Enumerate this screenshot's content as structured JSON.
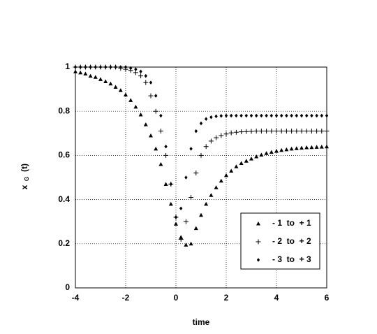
{
  "chart_data": {
    "type": "scatter",
    "xlabel": "time",
    "ylabel": "x",
    "ylabel_subscript": "G",
    "ylabel_suffix": "(t)",
    "x": [
      -4,
      -3.8,
      -3.6,
      -3.4,
      -3.2,
      -3,
      -2.8,
      -2.6,
      -2.4,
      -2.2,
      -2,
      -1.8,
      -1.6,
      -1.4,
      -1.2,
      -1,
      -0.8,
      -0.6,
      -0.4,
      -0.2,
      0,
      0.2,
      0.4,
      0.6,
      0.8,
      1,
      1.2,
      1.4,
      1.6,
      1.8,
      2,
      2.2,
      2.4,
      2.6,
      2.8,
      3,
      3.2,
      3.4,
      3.6,
      3.8,
      4,
      4.2,
      4.4,
      4.6,
      4.8,
      5,
      5.2,
      5.4,
      5.6,
      5.8,
      6
    ],
    "series": [
      {
        "name": "- 1  to  + 1",
        "marker": "triangle",
        "color": "#000000",
        "values": [
          0.98,
          0.975,
          0.97,
          0.96,
          0.955,
          0.945,
          0.935,
          0.925,
          0.91,
          0.895,
          0.875,
          0.85,
          0.82,
          0.785,
          0.74,
          0.69,
          0.63,
          0.56,
          0.47,
          0.38,
          0.29,
          0.23,
          0.195,
          0.2,
          0.27,
          0.33,
          0.38,
          0.42,
          0.455,
          0.485,
          0.51,
          0.53,
          0.55,
          0.565,
          0.575,
          0.585,
          0.595,
          0.603,
          0.61,
          0.615,
          0.62,
          0.624,
          0.627,
          0.63,
          0.632,
          0.634,
          0.636,
          0.637,
          0.638,
          0.639,
          0.64
        ]
      },
      {
        "name": "- 2  to  + 2",
        "marker": "plus",
        "color": "#000000",
        "values": [
          1,
          1,
          1,
          1,
          1,
          1,
          1,
          1,
          1,
          0.995,
          0.99,
          0.985,
          0.975,
          0.96,
          0.93,
          0.87,
          0.8,
          0.71,
          0.6,
          0.47,
          0.32,
          0.22,
          0.3,
          0.41,
          0.52,
          0.6,
          0.64,
          0.665,
          0.68,
          0.69,
          0.697,
          0.702,
          0.705,
          0.707,
          0.708,
          0.709,
          0.71,
          0.71,
          0.71,
          0.71,
          0.71,
          0.71,
          0.71,
          0.71,
          0.71,
          0.71,
          0.71,
          0.71,
          0.71,
          0.71,
          0.71
        ]
      },
      {
        "name": "- 3  to  + 3",
        "marker": "diamond",
        "color": "#000000",
        "values": [
          1,
          1,
          1,
          1,
          1,
          1,
          1,
          1,
          1,
          1,
          1,
          0.995,
          0.99,
          0.98,
          0.96,
          0.93,
          0.87,
          0.78,
          0.64,
          0.47,
          0.32,
          0.36,
          0.5,
          0.63,
          0.71,
          0.745,
          0.765,
          0.773,
          0.777,
          0.779,
          0.78,
          0.78,
          0.78,
          0.78,
          0.78,
          0.78,
          0.78,
          0.78,
          0.78,
          0.78,
          0.78,
          0.78,
          0.78,
          0.78,
          0.78,
          0.78,
          0.78,
          0.78,
          0.78,
          0.78,
          0.78
        ]
      }
    ],
    "xlim": [
      -4,
      6
    ],
    "xticks": [
      -4,
      -2,
      0,
      2,
      4,
      6
    ],
    "ylim": [
      0,
      1
    ],
    "yticks": [
      0,
      0.2,
      0.4,
      0.6,
      0.8,
      1
    ],
    "grid": true,
    "legend": "lower right"
  }
}
